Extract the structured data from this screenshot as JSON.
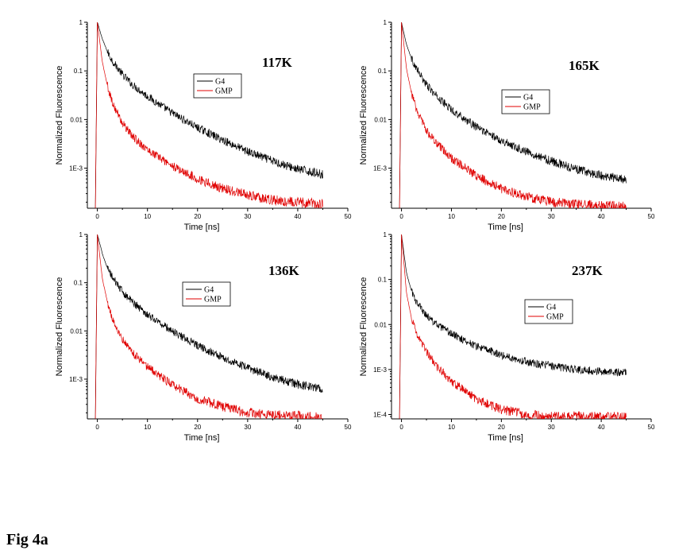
{
  "figure_caption": "Fig 4a",
  "colors": {
    "G4": "#000000",
    "GMP": "#e00000"
  },
  "chart_data": [
    {
      "type": "line",
      "annotation": "117K",
      "xlabel": "Time [ns]",
      "ylabel": "Normalized Fluorescence",
      "log_y": true,
      "xlim": [
        -2,
        50
      ],
      "ylim": [
        0.00015,
        1
      ],
      "x_ticks": [
        0,
        10,
        20,
        30,
        40,
        50
      ],
      "y_ticks": [
        1,
        0.1,
        0.01,
        0.001
      ],
      "y_tick_labels": [
        "1",
        "0.1",
        "0.01",
        "1E-3"
      ],
      "legend_position": "center",
      "series": [
        {
          "name": "G4",
          "x": [
            0,
            1,
            2,
            3,
            5,
            7,
            10,
            15,
            20,
            25,
            30,
            35,
            40,
            45
          ],
          "y": [
            1,
            0.45,
            0.25,
            0.16,
            0.085,
            0.052,
            0.03,
            0.0135,
            0.0068,
            0.0038,
            0.0022,
            0.0014,
            0.00095,
            0.00075
          ]
        },
        {
          "name": "GMP",
          "x": [
            0,
            1,
            2,
            3,
            5,
            7,
            10,
            15,
            20,
            25,
            30,
            35,
            40,
            45
          ],
          "y": [
            1,
            0.15,
            0.05,
            0.022,
            0.0085,
            0.0045,
            0.0024,
            0.0011,
            0.0006,
            0.00038,
            0.00028,
            0.00022,
            0.0002,
            0.00018
          ]
        }
      ]
    },
    {
      "type": "line",
      "annotation": "165K",
      "xlabel": "Time [ns]",
      "ylabel": "Normalized Fluorescence",
      "log_y": true,
      "xlim": [
        -2,
        50
      ],
      "ylim": [
        0.00015,
        1
      ],
      "x_ticks": [
        0,
        10,
        20,
        30,
        40,
        50
      ],
      "y_ticks": [
        1,
        0.1,
        0.01,
        0.001
      ],
      "y_tick_labels": [
        "1",
        "0.1",
        "0.01",
        "1E-3"
      ],
      "legend_position": "center-right",
      "series": [
        {
          "name": "G4",
          "x": [
            0,
            1,
            2,
            3,
            5,
            7,
            10,
            15,
            20,
            25,
            30,
            35,
            40,
            45
          ],
          "y": [
            1,
            0.35,
            0.18,
            0.11,
            0.052,
            0.03,
            0.016,
            0.007,
            0.0037,
            0.0022,
            0.0014,
            0.00095,
            0.0007,
            0.00058
          ]
        },
        {
          "name": "GMP",
          "x": [
            0,
            1,
            2,
            3,
            5,
            7,
            10,
            15,
            20,
            25,
            30,
            35,
            40,
            45
          ],
          "y": [
            1,
            0.11,
            0.035,
            0.016,
            0.006,
            0.0032,
            0.0016,
            0.0007,
            0.00038,
            0.00026,
            0.0002,
            0.00018,
            0.00017,
            0.00016
          ]
        }
      ]
    },
    {
      "type": "line",
      "annotation": "136K",
      "xlabel": "Time [ns]",
      "ylabel": "Normalized Fluorescence",
      "log_y": true,
      "xlim": [
        -2,
        50
      ],
      "ylim": [
        0.00015,
        1
      ],
      "x_ticks": [
        0,
        10,
        20,
        30,
        40,
        50
      ],
      "y_ticks": [
        1,
        0.1,
        0.01,
        0.001
      ],
      "y_tick_labels": [
        "1",
        "0.1",
        "0.01",
        "1E-3"
      ],
      "legend_position": "center",
      "series": [
        {
          "name": "G4",
          "x": [
            0,
            1,
            2,
            3,
            5,
            7,
            10,
            15,
            20,
            25,
            30,
            35,
            40,
            45
          ],
          "y": [
            1,
            0.4,
            0.2,
            0.13,
            0.065,
            0.04,
            0.022,
            0.0098,
            0.005,
            0.0028,
            0.0017,
            0.0011,
            0.00078,
            0.00062
          ]
        },
        {
          "name": "GMP",
          "x": [
            0,
            1,
            2,
            3,
            5,
            7,
            10,
            15,
            20,
            25,
            30,
            35,
            40,
            45
          ],
          "y": [
            1,
            0.12,
            0.04,
            0.018,
            0.0068,
            0.0036,
            0.0018,
            0.00075,
            0.0004,
            0.00027,
            0.0002,
            0.00018,
            0.00017,
            0.00016
          ]
        }
      ]
    },
    {
      "type": "line",
      "annotation": "237K",
      "xlabel": "Time [ns]",
      "ylabel": "Normalized Fluorescence",
      "log_y": true,
      "xlim": [
        -2,
        50
      ],
      "ylim": [
        8e-05,
        1
      ],
      "x_ticks": [
        0,
        10,
        20,
        30,
        40,
        50
      ],
      "y_ticks": [
        1,
        0.1,
        0.01,
        0.001,
        0.0001
      ],
      "y_tick_labels": [
        "1",
        "0.1",
        "0.01",
        "1E-3",
        "1E-4"
      ],
      "legend_position": "center-right",
      "series": [
        {
          "name": "G4",
          "x": [
            0,
            1,
            2,
            3,
            5,
            7,
            10,
            15,
            20,
            25,
            30,
            35,
            40,
            45
          ],
          "y": [
            1,
            0.14,
            0.055,
            0.032,
            0.016,
            0.01,
            0.0062,
            0.0033,
            0.0021,
            0.0015,
            0.0012,
            0.001,
            0.0009,
            0.00085
          ]
        },
        {
          "name": "GMP",
          "x": [
            0,
            1,
            2,
            3,
            5,
            7,
            10,
            15,
            20,
            25,
            30,
            35,
            40,
            45
          ],
          "y": [
            1,
            0.05,
            0.014,
            0.0065,
            0.0025,
            0.0012,
            0.00055,
            0.00022,
            0.00013,
            0.0001,
            9e-05,
            9e-05,
            9e-05,
            9e-05
          ]
        }
      ]
    }
  ]
}
